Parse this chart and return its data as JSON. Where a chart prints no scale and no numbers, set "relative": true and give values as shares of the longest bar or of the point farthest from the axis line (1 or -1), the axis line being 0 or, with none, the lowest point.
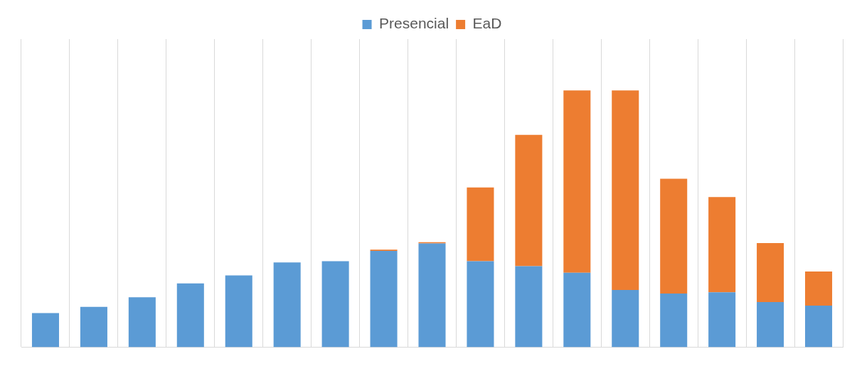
{
  "chart_data": {
    "type": "bar",
    "stacked": true,
    "relative": true,
    "grid": "x",
    "legend": "top",
    "categories": [
      null,
      null,
      null,
      null,
      null,
      null,
      null,
      null,
      null,
      null,
      null,
      null,
      null,
      null,
      null,
      null,
      null
    ],
    "series": [
      {
        "name": "Presencial",
        "color": "#5b9bd5",
        "values": [
          0.133,
          0.157,
          0.195,
          0.249,
          0.28,
          0.33,
          0.335,
          0.375,
          0.404,
          0.335,
          0.316,
          0.29,
          0.223,
          0.209,
          0.214,
          0.176,
          0.162
        ]
      },
      {
        "name": "EaD",
        "color": "#ed7d31",
        "values": [
          null,
          null,
          null,
          null,
          null,
          null,
          null,
          0.005,
          0.005,
          0.287,
          0.511,
          0.71,
          0.777,
          0.447,
          0.371,
          0.23,
          0.133
        ]
      }
    ]
  }
}
